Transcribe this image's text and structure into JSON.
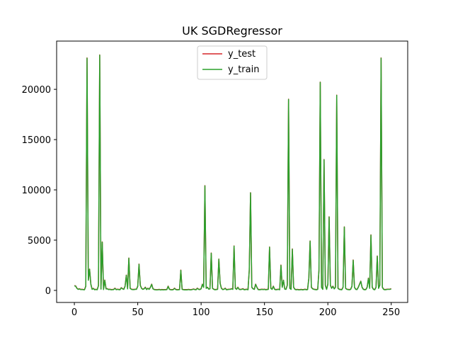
{
  "chart_data": {
    "type": "line",
    "title": "UK SGDRegressor",
    "xlabel": "",
    "ylabel": "",
    "xlim": [
      -14,
      263
    ],
    "ylim": [
      -1200,
      24800
    ],
    "xticks": [
      0,
      50,
      100,
      150,
      200,
      250
    ],
    "yticks": [
      0,
      5000,
      10000,
      15000,
      20000
    ],
    "grid": false,
    "legend": {
      "position": "upper center"
    },
    "baseline": [
      [
        0,
        450
      ],
      [
        1,
        420
      ],
      [
        2,
        200
      ],
      [
        3,
        100
      ],
      [
        4,
        140
      ],
      [
        5,
        80
      ],
      [
        6,
        90
      ],
      [
        7,
        70
      ],
      [
        8,
        60
      ],
      [
        9,
        400
      ],
      [
        10,
        1500
      ],
      [
        11,
        150
      ],
      [
        12,
        80
      ],
      [
        13,
        600
      ],
      [
        14,
        100
      ],
      [
        15,
        180
      ],
      [
        16,
        60
      ],
      [
        17,
        90
      ],
      [
        18,
        60
      ],
      [
        19,
        450
      ],
      [
        20,
        80
      ],
      [
        21,
        120
      ],
      [
        22,
        200
      ],
      [
        23,
        80
      ],
      [
        24,
        1000
      ],
      [
        25,
        150
      ],
      [
        26,
        150
      ],
      [
        27,
        80
      ],
      [
        28,
        100
      ],
      [
        29,
        60
      ],
      [
        30,
        70
      ],
      [
        31,
        80
      ],
      [
        32,
        200
      ],
      [
        33,
        70
      ],
      [
        34,
        100
      ],
      [
        35,
        80
      ],
      [
        36,
        60
      ],
      [
        37,
        250
      ],
      [
        38,
        150
      ],
      [
        39,
        100
      ],
      [
        40,
        400
      ],
      [
        41,
        1500
      ],
      [
        42,
        150
      ],
      [
        43,
        120
      ],
      [
        44,
        200
      ],
      [
        45,
        100
      ],
      [
        46,
        80
      ],
      [
        47,
        80
      ],
      [
        48,
        100
      ],
      [
        49,
        100
      ],
      [
        50,
        400
      ],
      [
        51,
        2600
      ],
      [
        52,
        500
      ],
      [
        53,
        200
      ],
      [
        54,
        100
      ],
      [
        55,
        150
      ],
      [
        56,
        300
      ],
      [
        57,
        80
      ],
      [
        58,
        200
      ],
      [
        59,
        100
      ],
      [
        60,
        300
      ],
      [
        61,
        600
      ],
      [
        62,
        150
      ],
      [
        63,
        80
      ],
      [
        64,
        60
      ],
      [
        65,
        50
      ],
      [
        66,
        60
      ],
      [
        67,
        80
      ],
      [
        68,
        40
      ],
      [
        69,
        70
      ],
      [
        70,
        50
      ],
      [
        71,
        60
      ],
      [
        72,
        60
      ],
      [
        73,
        80
      ],
      [
        74,
        400
      ],
      [
        75,
        100
      ],
      [
        76,
        60
      ],
      [
        77,
        50
      ],
      [
        78,
        70
      ],
      [
        79,
        200
      ],
      [
        80,
        80
      ],
      [
        81,
        50
      ],
      [
        82,
        60
      ],
      [
        83,
        80
      ],
      [
        84,
        2000
      ],
      [
        85,
        100
      ],
      [
        86,
        70
      ],
      [
        87,
        50
      ],
      [
        88,
        60
      ],
      [
        89,
        50
      ],
      [
        90,
        80
      ],
      [
        91,
        60
      ],
      [
        92,
        50
      ],
      [
        93,
        80
      ],
      [
        94,
        120
      ],
      [
        95,
        80
      ],
      [
        96,
        60
      ],
      [
        97,
        200
      ],
      [
        98,
        100
      ],
      [
        99,
        80
      ],
      [
        100,
        150
      ],
      [
        101,
        600
      ],
      [
        102,
        300
      ],
      [
        103,
        10400
      ],
      [
        104,
        200
      ],
      [
        105,
        300
      ],
      [
        106,
        120
      ],
      [
        107,
        150
      ],
      [
        108,
        3700
      ],
      [
        109,
        200
      ],
      [
        110,
        100
      ],
      [
        111,
        60
      ],
      [
        112,
        80
      ],
      [
        113,
        100
      ],
      [
        114,
        3100
      ],
      [
        115,
        700
      ],
      [
        116,
        200
      ],
      [
        117,
        80
      ],
      [
        118,
        100
      ],
      [
        119,
        200
      ],
      [
        120,
        60
      ],
      [
        121,
        80
      ],
      [
        122,
        100
      ],
      [
        123,
        100
      ],
      [
        124,
        150
      ],
      [
        125,
        100
      ],
      [
        126,
        4400
      ],
      [
        127,
        200
      ],
      [
        128,
        100
      ],
      [
        129,
        300
      ],
      [
        130,
        100
      ],
      [
        131,
        80
      ],
      [
        132,
        100
      ],
      [
        133,
        150
      ],
      [
        134,
        60
      ],
      [
        135,
        80
      ],
      [
        136,
        100
      ],
      [
        137,
        60
      ],
      [
        138,
        2000
      ],
      [
        139,
        9700
      ],
      [
        140,
        300
      ],
      [
        141,
        150
      ],
      [
        142,
        100
      ],
      [
        143,
        600
      ],
      [
        144,
        300
      ],
      [
        145,
        80
      ],
      [
        146,
        60
      ],
      [
        147,
        80
      ],
      [
        148,
        100
      ],
      [
        149,
        80
      ],
      [
        150,
        100
      ],
      [
        151,
        60
      ],
      [
        152,
        80
      ],
      [
        153,
        100
      ],
      [
        154,
        4300
      ],
      [
        155,
        200
      ],
      [
        156,
        100
      ],
      [
        157,
        400
      ],
      [
        158,
        100
      ],
      [
        159,
        60
      ],
      [
        160,
        80
      ],
      [
        161,
        100
      ],
      [
        162,
        60
      ],
      [
        163,
        2500
      ],
      [
        164,
        300
      ],
      [
        165,
        1000
      ],
      [
        166,
        120
      ],
      [
        167,
        100
      ],
      [
        168,
        500
      ],
      [
        169,
        19000
      ],
      [
        170,
        200
      ],
      [
        171,
        100
      ],
      [
        172,
        4100
      ],
      [
        173,
        300
      ],
      [
        174,
        100
      ],
      [
        175,
        60
      ],
      [
        176,
        80
      ],
      [
        177,
        50
      ],
      [
        178,
        60
      ],
      [
        179,
        80
      ],
      [
        180,
        50
      ],
      [
        181,
        70
      ],
      [
        182,
        100
      ],
      [
        183,
        60
      ],
      [
        184,
        80
      ],
      [
        185,
        1200
      ],
      [
        186,
        4900
      ],
      [
        187,
        300
      ],
      [
        188,
        150
      ],
      [
        189,
        100
      ],
      [
        190,
        80
      ],
      [
        191,
        60
      ],
      [
        192,
        100
      ],
      [
        193,
        2000
      ],
      [
        194,
        20700
      ],
      [
        195,
        300
      ],
      [
        196,
        100
      ],
      [
        197,
        13000
      ],
      [
        198,
        500
      ],
      [
        199,
        100
      ],
      [
        200,
        600
      ],
      [
        201,
        7300
      ],
      [
        202,
        500
      ],
      [
        203,
        200
      ],
      [
        204,
        400
      ],
      [
        205,
        150
      ],
      [
        206,
        300
      ],
      [
        207,
        19400
      ],
      [
        208,
        200
      ],
      [
        209,
        100
      ],
      [
        210,
        80
      ],
      [
        211,
        60
      ],
      [
        212,
        300
      ],
      [
        213,
        6300
      ],
      [
        214,
        200
      ],
      [
        215,
        100
      ],
      [
        216,
        80
      ],
      [
        217,
        60
      ],
      [
        218,
        100
      ],
      [
        219,
        400
      ],
      [
        220,
        3000
      ],
      [
        221,
        300
      ],
      [
        222,
        100
      ],
      [
        223,
        80
      ],
      [
        224,
        300
      ],
      [
        225,
        600
      ],
      [
        226,
        900
      ],
      [
        227,
        300
      ],
      [
        228,
        100
      ],
      [
        229,
        60
      ],
      [
        230,
        80
      ],
      [
        231,
        300
      ],
      [
        232,
        1200
      ],
      [
        233,
        200
      ],
      [
        234,
        5500
      ],
      [
        235,
        300
      ],
      [
        236,
        100
      ],
      [
        237,
        60
      ],
      [
        238,
        300
      ],
      [
        239,
        3400
      ],
      [
        240,
        200
      ],
      [
        241,
        500
      ],
      [
        242,
        23100
      ],
      [
        243,
        300
      ],
      [
        244,
        100
      ],
      [
        245,
        60
      ],
      [
        246,
        80
      ],
      [
        247,
        100
      ],
      [
        248,
        100
      ],
      [
        249,
        100
      ],
      [
        250,
        150
      ]
    ],
    "peaks": [
      [
        10,
        23100
      ],
      [
        11,
        1000
      ],
      [
        12,
        2100
      ],
      [
        20,
        23400
      ],
      [
        22,
        4800
      ],
      [
        43,
        3200
      ]
    ],
    "series": [
      {
        "name": "y_test",
        "color": "#d62728",
        "offset": 0.35
      },
      {
        "name": "y_train",
        "color": "#2ca02c",
        "offset": 0
      }
    ]
  }
}
